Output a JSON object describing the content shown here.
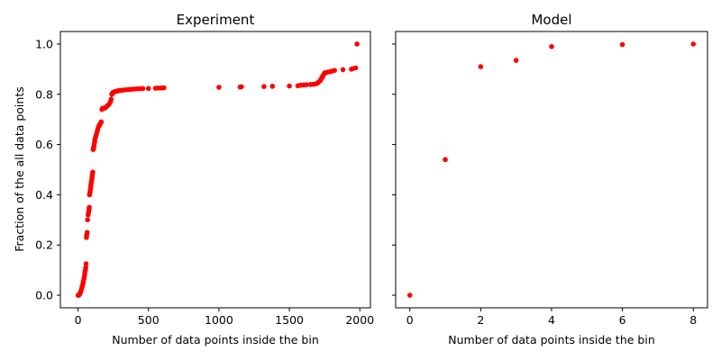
{
  "chart_data": [
    {
      "type": "scatter",
      "title": "Experiment",
      "xlabel": "Number of data points inside the bin",
      "ylabel": "Fraction of the all data points",
      "xlim": [
        -125,
        2075
      ],
      "ylim": [
        -0.05,
        1.05
      ],
      "xticks": [
        "0",
        "500",
        "1000",
        "1500",
        "2000"
      ],
      "yticks": [
        "0.0",
        "0.2",
        "0.4",
        "0.6",
        "0.8",
        "1.0"
      ],
      "marker_color": "#ff0000",
      "series": [
        {
          "x": [
            0,
            5,
            10,
            15,
            20,
            25,
            30,
            35,
            38,
            42,
            45,
            48,
            50,
            52,
            55,
            57,
            60,
            62,
            65,
            68,
            72,
            75,
            78,
            80,
            82,
            85,
            88,
            90,
            92,
            95,
            98,
            100,
            102,
            105,
            108,
            110,
            112,
            115,
            118,
            120,
            125,
            130,
            135,
            140,
            145,
            150,
            155,
            160,
            165,
            170,
            175,
            180,
            190,
            200,
            210,
            220,
            230,
            235,
            240,
            245,
            250,
            260,
            270,
            280,
            290,
            300,
            320,
            340,
            360,
            380,
            400,
            420,
            440,
            460,
            500,
            550,
            570,
            590,
            600,
            610,
            1000,
            1150,
            1160,
            1320,
            1380,
            1500,
            1560,
            1580,
            1600,
            1620,
            1650,
            1670,
            1690,
            1700,
            1710,
            1720,
            1725,
            1730,
            1735,
            1740,
            1745,
            1750,
            1760,
            1770,
            1790,
            1800,
            1820,
            1880,
            1940,
            1950,
            1970,
            1980
          ],
          "y": [
            0.0,
            0.0,
            0.003,
            0.008,
            0.015,
            0.025,
            0.035,
            0.045,
            0.055,
            0.065,
            0.075,
            0.085,
            0.095,
            0.1,
            0.11,
            0.125,
            0.23,
            0.24,
            0.25,
            0.3,
            0.32,
            0.33,
            0.34,
            0.35,
            0.4,
            0.41,
            0.42,
            0.43,
            0.44,
            0.45,
            0.46,
            0.47,
            0.48,
            0.49,
            0.58,
            0.585,
            0.59,
            0.6,
            0.61,
            0.62,
            0.63,
            0.64,
            0.65,
            0.66,
            0.67,
            0.675,
            0.68,
            0.685,
            0.69,
            0.74,
            0.745,
            0.745,
            0.745,
            0.75,
            0.755,
            0.76,
            0.77,
            0.78,
            0.8,
            0.805,
            0.808,
            0.81,
            0.812,
            0.813,
            0.815,
            0.815,
            0.817,
            0.818,
            0.819,
            0.82,
            0.821,
            0.822,
            0.822,
            0.823,
            0.823,
            0.824,
            0.825,
            0.825,
            0.826,
            0.826,
            0.828,
            0.829,
            0.83,
            0.831,
            0.832,
            0.833,
            0.834,
            0.836,
            0.837,
            0.838,
            0.839,
            0.84,
            0.842,
            0.845,
            0.85,
            0.855,
            0.86,
            0.865,
            0.87,
            0.875,
            0.88,
            0.885,
            0.887,
            0.888,
            0.89,
            0.892,
            0.895,
            0.898,
            0.9,
            0.902,
            0.905,
            1.0
          ]
        }
      ]
    },
    {
      "type": "scatter",
      "title": "Model",
      "xlabel": "Number of data points inside the bin",
      "ylabel": "",
      "xlim": [
        -0.4,
        8.4
      ],
      "ylim": [
        -0.05,
        1.05
      ],
      "xticks": [
        "0",
        "2",
        "4",
        "6",
        "8"
      ],
      "yticks": [
        "0.0",
        "0.2",
        "0.4",
        "0.6",
        "0.8",
        "1.0"
      ],
      "sharey": true,
      "marker_color": "#ff0000",
      "series": [
        {
          "x": [
            0,
            1,
            2,
            3,
            4,
            6,
            8
          ],
          "y": [
            0.0,
            0.54,
            0.91,
            0.935,
            0.99,
            0.998,
            1.0
          ]
        }
      ]
    }
  ]
}
